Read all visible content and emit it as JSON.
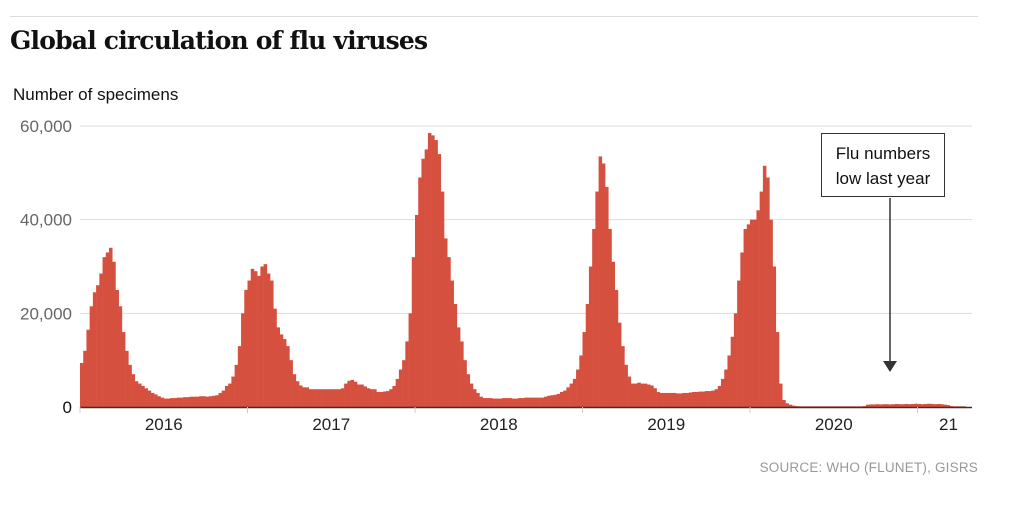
{
  "title": "Global circulation of flu viruses",
  "source": "SOURCE: WHO (FLUNET), GISRS",
  "colors": {
    "bars": "#d6503f",
    "grid": "#dddddd",
    "axis": "#333333"
  },
  "chart_data": {
    "type": "bar",
    "ylabel": "Number of specimens",
    "ylim": [
      0,
      60000
    ],
    "yticks": [
      0,
      20000,
      40000,
      60000
    ],
    "ytick_labels": [
      "0",
      "20,000",
      "40,000",
      "60,000"
    ],
    "xtick_labels": [
      "2016",
      "2017",
      "2018",
      "2019",
      "2020",
      "21"
    ],
    "grid": true,
    "x_unit": "week of year",
    "annotation": {
      "text_line1": "Flu numbers",
      "text_line2": "low last year",
      "points_to": "2020-2021 season"
    },
    "weekly": [
      {
        "year": 2016,
        "values": [
          9400,
          12000,
          16500,
          21500,
          24500,
          26000,
          28500,
          32000,
          33000,
          34000,
          31000,
          25000,
          21500,
          16000,
          12000,
          9000,
          7000,
          5500,
          5000,
          4500,
          4000,
          3500,
          3000,
          2700,
          2300,
          2000,
          1800,
          1800,
          1900,
          1900,
          2000,
          2000,
          2100,
          2100,
          2200,
          2200,
          2200,
          2300,
          2300,
          2200,
          2300,
          2400,
          2500,
          3000,
          3500,
          4500,
          5000,
          6500,
          9000,
          13000,
          20000,
          25000
        ]
      },
      {
        "year": 2017,
        "values": [
          27000,
          29500,
          29000,
          28000,
          30000,
          30500,
          28500,
          27000,
          21000,
          17000,
          15500,
          14500,
          13000,
          10000,
          7000,
          5500,
          4600,
          4200,
          4200,
          3800,
          3800,
          3800,
          3800,
          3800,
          3800,
          3800,
          3800,
          3800,
          3800,
          4000,
          5000,
          5600,
          5800,
          5400,
          4800,
          4800,
          4400,
          4000,
          3800,
          3800,
          3200,
          3200,
          3300,
          3400,
          3800,
          4500,
          6000,
          8000,
          10000,
          14000,
          20000,
          32000
        ]
      },
      {
        "year": 2018,
        "values": [
          41000,
          49000,
          53000,
          55000,
          58500,
          58000,
          57000,
          54000,
          46000,
          36000,
          32000,
          27000,
          22000,
          17000,
          14000,
          10000,
          7000,
          5000,
          3800,
          3000,
          2200,
          1900,
          1900,
          1900,
          1800,
          1800,
          1800,
          1900,
          1900,
          1900,
          1800,
          1800,
          1900,
          1900,
          2000,
          2000,
          2000,
          2000,
          2000,
          2000,
          2200,
          2400,
          2500,
          2600,
          2800,
          3200,
          3500,
          4200,
          5000,
          6000,
          8000,
          11000
        ]
      },
      {
        "year": 2019,
        "values": [
          16000,
          22000,
          30000,
          38000,
          46000,
          53500,
          52000,
          47000,
          38000,
          31000,
          25000,
          18000,
          13000,
          9000,
          6500,
          5000,
          5000,
          5200,
          5000,
          5000,
          4800,
          4600,
          4000,
          3200,
          3000,
          3000,
          3000,
          3000,
          3000,
          2900,
          2900,
          3000,
          3000,
          3100,
          3200,
          3200,
          3300,
          3300,
          3400,
          3400,
          3500,
          3800,
          4500,
          6000,
          8000,
          11000,
          15000,
          20000,
          27000,
          33000,
          38000,
          39000
        ]
      },
      {
        "year": 2020,
        "values": [
          40000,
          40000,
          42000,
          46000,
          51500,
          49000,
          40000,
          30000,
          16000,
          5000,
          1500,
          800,
          500,
          300,
          200,
          150,
          150,
          150,
          150,
          150,
          150,
          150,
          150,
          150,
          150,
          150,
          150,
          150,
          150,
          150,
          150,
          150,
          150,
          150,
          150,
          200,
          500,
          550,
          550,
          600,
          550,
          600,
          600,
          550,
          600,
          650,
          600,
          600,
          650,
          600,
          650,
          700
        ]
      },
      {
        "year": 2021,
        "values": [
          650,
          600,
          650,
          700,
          650,
          600,
          650,
          600,
          500,
          400,
          200,
          150,
          150,
          150,
          150
        ]
      }
    ]
  }
}
